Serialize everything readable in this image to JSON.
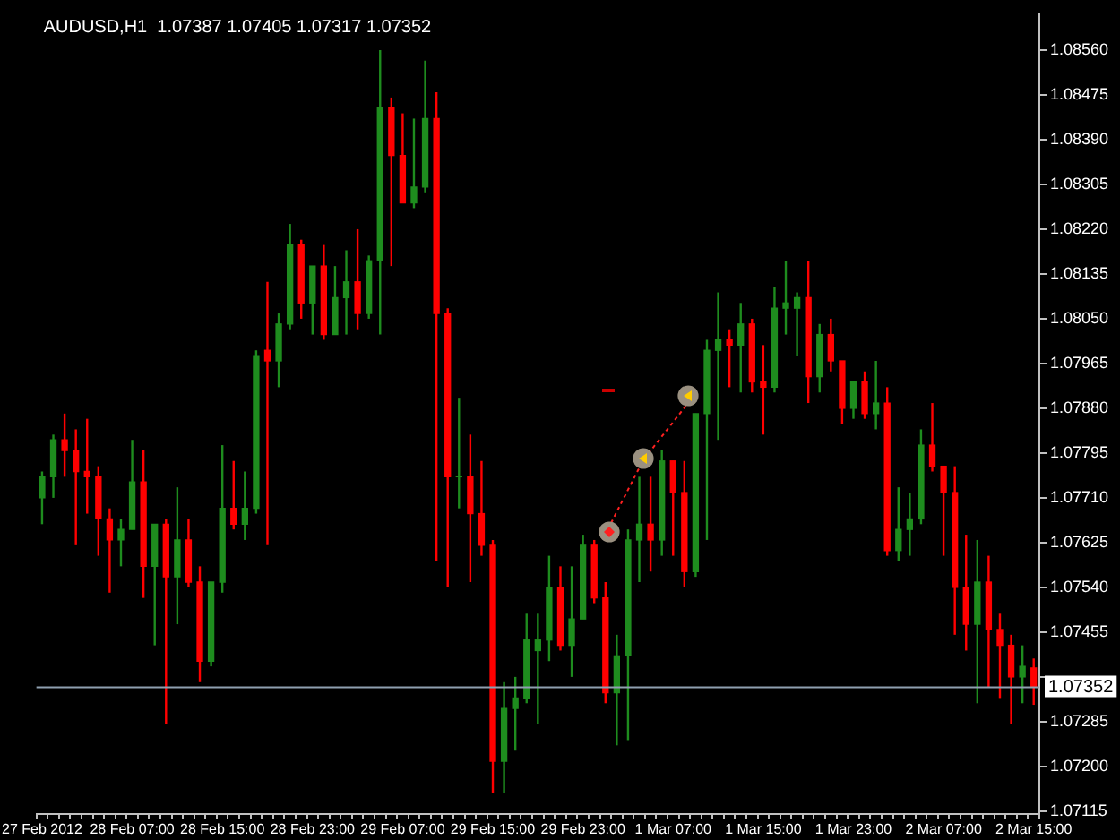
{
  "chart_data": {
    "type": "candlestick",
    "title": "AUDUSD,H1  1.07387 1.07405 1.07317 1.07352",
    "categories": [
      "27 Feb 2012",
      null,
      null,
      null,
      null,
      null,
      null,
      null,
      "28 Feb 07:00",
      null,
      null,
      null,
      null,
      null,
      null,
      null,
      "28 Feb 15:00",
      null,
      null,
      null,
      null,
      null,
      null,
      null,
      "28 Feb 23:00",
      null,
      null,
      null,
      null,
      null,
      null,
      null,
      "29 Feb 07:00",
      null,
      null,
      null,
      null,
      null,
      null,
      null,
      "29 Feb 15:00",
      null,
      null,
      null,
      null,
      null,
      null,
      null,
      "29 Feb 23:00",
      null,
      null,
      null,
      null,
      null,
      null,
      null,
      "1 Mar 07:00",
      null,
      null,
      null,
      null,
      null,
      null,
      null,
      "1 Mar 15:00",
      null,
      null,
      null,
      null,
      null,
      null,
      null,
      "1 Mar 23:00",
      null,
      null,
      null,
      null,
      null,
      null,
      null,
      "2 Mar 07:00",
      null,
      null,
      null,
      null,
      null,
      null,
      null,
      "2 Mar 15:00"
    ],
    "ohlc": [
      [
        1.0771,
        1.0776,
        1.0766,
        1.0775
      ],
      [
        1.0775,
        1.0783,
        1.0771,
        1.0782
      ],
      [
        1.0782,
        1.0787,
        1.0775,
        1.078
      ],
      [
        1.078,
        1.0784,
        1.0762,
        1.0776
      ],
      [
        1.0776,
        1.0786,
        1.0768,
        1.0775
      ],
      [
        1.0775,
        1.0777,
        1.076,
        1.0767
      ],
      [
        1.0767,
        1.0769,
        1.0753,
        1.0763
      ],
      [
        1.0763,
        1.0767,
        1.0758,
        1.0765
      ],
      [
        1.0765,
        1.0782,
        1.0765,
        1.0774
      ],
      [
        1.0774,
        1.078,
        1.0752,
        1.0758
      ],
      [
        1.0758,
        1.0766,
        1.0743,
        1.0766
      ],
      [
        1.0766,
        1.0767,
        1.0728,
        1.0756
      ],
      [
        1.0756,
        1.0773,
        1.0747,
        1.0763
      ],
      [
        1.0763,
        1.0767,
        1.0754,
        1.0755
      ],
      [
        1.0755,
        1.0758,
        1.0736,
        1.074
      ],
      [
        1.074,
        1.0755,
        1.0739,
        1.0755
      ],
      [
        1.0755,
        1.0781,
        1.0753,
        1.0769
      ],
      [
        1.0769,
        1.0778,
        1.0765,
        1.0766
      ],
      [
        1.0766,
        1.0776,
        1.0763,
        1.0769
      ],
      [
        1.0769,
        1.0799,
        1.0768,
        1.0798
      ],
      [
        1.0799,
        1.0812,
        1.0762,
        1.0797
      ],
      [
        1.0797,
        1.0806,
        1.0792,
        1.0804
      ],
      [
        1.0804,
        1.0823,
        1.0803,
        1.0819
      ],
      [
        1.0819,
        1.082,
        1.0805,
        1.0808
      ],
      [
        1.0808,
        1.0815,
        1.0802,
        1.0815
      ],
      [
        1.0815,
        1.0819,
        1.0801,
        1.0802
      ],
      [
        1.0802,
        1.0815,
        1.0802,
        1.0809
      ],
      [
        1.0809,
        1.0818,
        1.0802,
        1.0812
      ],
      [
        1.0812,
        1.0822,
        1.0803,
        1.0806
      ],
      [
        1.0806,
        1.0817,
        1.0805,
        1.0816
      ],
      [
        1.0816,
        1.0856,
        1.0802,
        1.0845
      ],
      [
        1.0845,
        1.0847,
        1.0815,
        1.0836
      ],
      [
        1.0836,
        1.0844,
        1.0827,
        1.0827
      ],
      [
        1.0827,
        1.0843,
        1.0826,
        1.083
      ],
      [
        1.083,
        1.0854,
        1.0829,
        1.0843
      ],
      [
        1.0843,
        1.0848,
        1.0759,
        1.0806
      ],
      [
        1.0806,
        1.0807,
        1.0754,
        1.0775
      ],
      [
        1.0775,
        1.079,
        1.0769,
        1.0775
      ],
      [
        1.0775,
        1.0783,
        1.0755,
        1.0768
      ],
      [
        1.0768,
        1.0778,
        1.076,
        1.0762
      ],
      [
        1.0762,
        1.0763,
        1.0715,
        1.0721
      ],
      [
        1.0721,
        1.0736,
        1.0715,
        1.0731
      ],
      [
        1.0731,
        1.0737,
        1.0723,
        1.0733
      ],
      [
        1.0733,
        1.0749,
        1.0732,
        1.0744
      ],
      [
        1.0742,
        1.0749,
        1.0728,
        1.0744
      ],
      [
        1.0744,
        1.076,
        1.074,
        1.0754
      ],
      [
        1.0754,
        1.0758,
        1.0742,
        1.0743
      ],
      [
        1.0743,
        1.0758,
        1.0737,
        1.0748
      ],
      [
        1.0748,
        1.0764,
        1.0748,
        1.0762
      ],
      [
        1.0762,
        1.0763,
        1.0751,
        1.0752
      ],
      [
        1.0752,
        1.0755,
        1.0732,
        1.0734
      ],
      [
        1.0734,
        1.0745,
        1.0724,
        1.0741
      ],
      [
        1.0741,
        1.0765,
        1.0725,
        1.0763
      ],
      [
        1.0763,
        1.0775,
        1.0755,
        1.0766
      ],
      [
        1.0766,
        1.0775,
        1.0757,
        1.0763
      ],
      [
        1.0763,
        1.078,
        1.076,
        1.0778
      ],
      [
        1.0778,
        1.0778,
        1.076,
        1.0772
      ],
      [
        1.0772,
        1.0778,
        1.0754,
        1.0757
      ],
      [
        1.0757,
        1.0787,
        1.0756,
        1.0787
      ],
      [
        1.0787,
        1.0801,
        1.0763,
        1.0799
      ],
      [
        1.0799,
        1.081,
        1.0782,
        1.0801
      ],
      [
        1.0801,
        1.0803,
        1.0792,
        1.08
      ],
      [
        1.08,
        1.0808,
        1.0791,
        1.0804
      ],
      [
        1.0804,
        1.0805,
        1.0791,
        1.0793
      ],
      [
        1.0793,
        1.08,
        1.0783,
        1.0792
      ],
      [
        1.0792,
        1.0811,
        1.0791,
        1.0807
      ],
      [
        1.0807,
        1.0816,
        1.0802,
        1.0808
      ],
      [
        1.0807,
        1.081,
        1.0798,
        1.0809
      ],
      [
        1.0809,
        1.0816,
        1.0789,
        1.0794
      ],
      [
        1.0794,
        1.0804,
        1.0791,
        1.0802
      ],
      [
        1.0802,
        1.0805,
        1.0795,
        1.0797
      ],
      [
        1.0797,
        1.0797,
        1.0785,
        1.0788
      ],
      [
        1.0788,
        1.0793,
        1.0786,
        1.0793
      ],
      [
        1.0793,
        1.0795,
        1.0786,
        1.0787
      ],
      [
        1.0787,
        1.0797,
        1.0784,
        1.0789
      ],
      [
        1.0789,
        1.0792,
        1.076,
        1.0761
      ],
      [
        1.0761,
        1.0773,
        1.0759,
        1.0765
      ],
      [
        1.0765,
        1.0772,
        1.076,
        1.0767
      ],
      [
        1.0767,
        1.0784,
        1.0766,
        1.0781
      ],
      [
        1.0781,
        1.0789,
        1.0776,
        1.0777
      ],
      [
        1.0777,
        1.0777,
        1.076,
        1.0772
      ],
      [
        1.0772,
        1.0777,
        1.0745,
        1.0754
      ],
      [
        1.0754,
        1.0764,
        1.0742,
        1.0747
      ],
      [
        1.0747,
        1.0763,
        1.0732,
        1.0755
      ],
      [
        1.0755,
        1.076,
        1.0735,
        1.0746
      ],
      [
        1.0746,
        1.0749,
        1.0733,
        1.0743
      ],
      [
        1.0743,
        1.0745,
        1.0728,
        1.0737
      ],
      [
        1.0737,
        1.0743,
        1.0732,
        1.0739
      ],
      [
        1.07387,
        1.07405,
        1.07317,
        1.07352
      ]
    ],
    "colors": [
      "#1e8c1e",
      "#1e8c1e",
      "#ff0000",
      "#ff0000",
      "#ff0000",
      "#ff0000",
      "#ff0000",
      "#1e8c1e",
      "#1e8c1e",
      "#ff0000",
      "#1e8c1e",
      "#ff0000",
      "#1e8c1e",
      "#ff0000",
      "#ff0000",
      "#1e8c1e",
      "#1e8c1e",
      "#ff0000",
      "#1e8c1e",
      "#1e8c1e",
      "#ff0000",
      "#1e8c1e",
      "#1e8c1e",
      "#ff0000",
      "#1e8c1e",
      "#ff0000",
      "#1e8c1e",
      "#1e8c1e",
      "#ff0000",
      "#1e8c1e",
      "#1e8c1e",
      "#ff0000",
      "#ff0000",
      "#1e8c1e",
      "#1e8c1e",
      "#ff0000",
      "#ff0000",
      "#1e8c1e",
      "#ff0000",
      "#ff0000",
      "#ff0000",
      "#1e8c1e",
      "#1e8c1e",
      "#1e8c1e",
      "#1e8c1e",
      "#1e8c1e",
      "#ff0000",
      "#1e8c1e",
      "#1e8c1e",
      "#ff0000",
      "#ff0000",
      "#1e8c1e",
      "#1e8c1e",
      "#1e8c1e",
      "#ff0000",
      "#1e8c1e",
      "#ff0000",
      "#ff0000",
      "#1e8c1e",
      "#1e8c1e",
      "#1e8c1e",
      "#ff0000",
      "#1e8c1e",
      "#ff0000",
      "#ff0000",
      "#1e8c1e",
      "#1e8c1e",
      "#1e8c1e",
      "#ff0000",
      "#1e8c1e",
      "#ff0000",
      "#ff0000",
      "#1e8c1e",
      "#ff0000",
      "#1e8c1e",
      "#ff0000",
      "#1e8c1e",
      "#1e8c1e",
      "#1e8c1e",
      "#ff0000",
      "#ff0000",
      "#ff0000",
      "#ff0000",
      "#1e8c1e",
      "#ff0000",
      "#ff0000",
      "#ff0000",
      "#1e8c1e",
      "#ff0000"
    ],
    "ylim": [
      1.0711,
      1.0863
    ],
    "yticks": [
      {
        "value": 1.0856,
        "label": "1.08560"
      },
      {
        "value": 1.08475,
        "label": "1.08475"
      },
      {
        "value": 1.0839,
        "label": "1.08390"
      },
      {
        "value": 1.08305,
        "label": "1.08305"
      },
      {
        "value": 1.0822,
        "label": "1.08220"
      },
      {
        "value": 1.08135,
        "label": "1.08135"
      },
      {
        "value": 1.0805,
        "label": "1.08050"
      },
      {
        "value": 1.07965,
        "label": "1.07965"
      },
      {
        "value": 1.0788,
        "label": "1.07880"
      },
      {
        "value": 1.07795,
        "label": "1.07795"
      },
      {
        "value": 1.0771,
        "label": "1.07710"
      },
      {
        "value": 1.07625,
        "label": "1.07625"
      },
      {
        "value": 1.0754,
        "label": "1.07540"
      },
      {
        "value": 1.07455,
        "label": "1.07455"
      },
      {
        "value": 1.0737,
        "label": null
      },
      {
        "value": 1.07285,
        "label": "1.07285"
      },
      {
        "value": 1.072,
        "label": "1.07200"
      },
      {
        "value": 1.07115,
        "label": "1.07115"
      }
    ],
    "ref_lines": [
      {
        "axis": "y",
        "value": 1.07352,
        "label": "1.07352",
        "color": "#8fa0b0"
      }
    ],
    "grid": false,
    "legend": false
  }
}
